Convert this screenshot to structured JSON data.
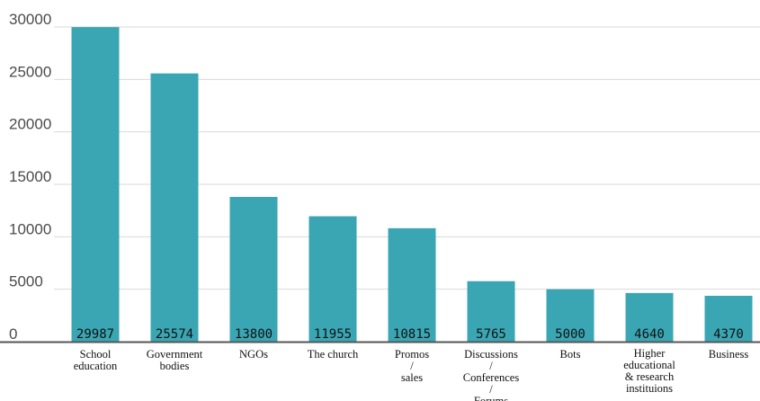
{
  "chart_data": {
    "type": "bar",
    "categories": [
      [
        "School",
        "education"
      ],
      [
        "Government",
        "bodies"
      ],
      [
        "NGOs"
      ],
      [
        "The church"
      ],
      [
        "Promos",
        "/",
        "sales"
      ],
      [
        "Discussions",
        "/",
        "Conferences",
        "/",
        "Forums"
      ],
      [
        "Bots"
      ],
      [
        "Higher",
        "educational",
        "& research",
        "instituions"
      ],
      [
        "Business"
      ]
    ],
    "values": [
      29987,
      25574,
      13800,
      11955,
      10815,
      5765,
      5000,
      4640,
      4370
    ],
    "value_labels": [
      "29987",
      "25574",
      "13800",
      "11955",
      "10815",
      "5765",
      "5000",
      "4640",
      "4370"
    ],
    "yticks": [
      "0",
      "5000",
      "10000",
      "15000",
      "20000",
      "25000",
      "30000"
    ],
    "ytick_values": [
      0,
      5000,
      10000,
      15000,
      20000,
      25000,
      30000
    ],
    "ylim": [
      0,
      30000
    ],
    "grid": true,
    "bar_color": "#3aa6b3",
    "axis_color": "#555555",
    "grid_color": "#d9d9d9",
    "title": "",
    "xlabel": "",
    "ylabel": ""
  }
}
